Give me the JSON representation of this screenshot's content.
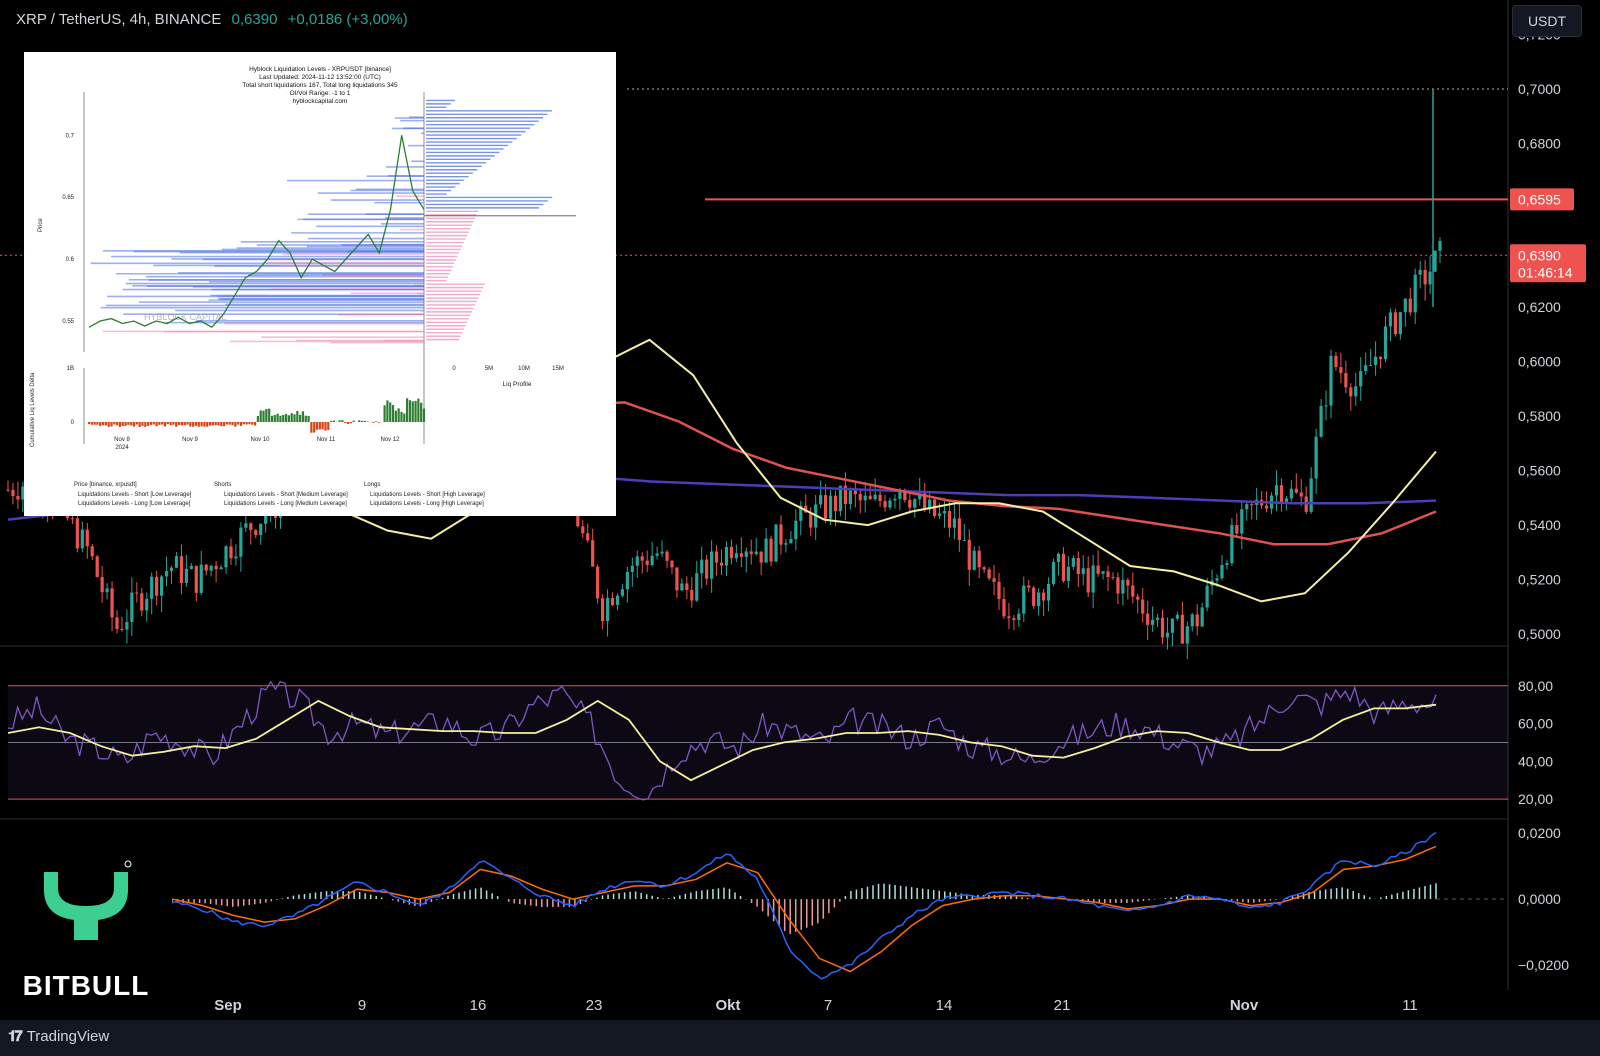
{
  "header": {
    "symbol": "XRP / TetherUS, 4h, BINANCE",
    "last": "0,6390",
    "change": "+0,0186 (+3,00%)"
  },
  "currency_button": "USDT",
  "price_tags": {
    "level": "0,6595",
    "last": "0,6390",
    "countdown": "01:46:14"
  },
  "brand": {
    "name": "BITBULL",
    "icon": "bitbull-logo-icon"
  },
  "footer": {
    "label": "TradingView",
    "icon": "tradingview-logo-icon"
  },
  "colors": {
    "bg": "#000000",
    "up": "#26a69a",
    "down": "#ef5350",
    "ma_fast": "#f5f0a0",
    "ma_mid": "#e05252",
    "ma_slow": "#4b3fb8",
    "rsi": "#7e57c2",
    "rsi_ma": "#f5f0a0",
    "macd": "#2962ff",
    "signal": "#ff6d00",
    "brand": "#3ccf91"
  },
  "chart_data": [
    {
      "type": "candlestick",
      "title": "XRP / TetherUS, 4h, BINANCE",
      "x_labels": [
        "Sep",
        "9",
        "16",
        "23",
        "Okt",
        "7",
        "14",
        "21",
        "Nov",
        "11"
      ],
      "y_ticks": [
        "0,7200",
        "0,7000",
        "0,6800",
        "0,6600",
        "0,6400",
        "0,6200",
        "0,6000",
        "0,5800",
        "0,5600",
        "0,5400",
        "0,5200",
        "0,5000"
      ],
      "ylim": [
        0.496,
        0.729
      ],
      "horizontal_line": 0.6595,
      "last_price": 0.639,
      "close_path": [
        0.553,
        0.557,
        0.545,
        0.53,
        0.502,
        0.515,
        0.525,
        0.52,
        0.53,
        0.54,
        0.548,
        0.58,
        0.575,
        0.585,
        0.59,
        0.58,
        0.586,
        0.62,
        0.655,
        0.6,
        0.625,
        0.545,
        0.51,
        0.525,
        0.53,
        0.515,
        0.525,
        0.535,
        0.53,
        0.54,
        0.545,
        0.55,
        0.547,
        0.555,
        0.545,
        0.54,
        0.52,
        0.51,
        0.515,
        0.525,
        0.52,
        0.52,
        0.51,
        0.5,
        0.505,
        0.53,
        0.545,
        0.555,
        0.548,
        0.6,
        0.59,
        0.61,
        0.625,
        0.639
      ],
      "series": [
        {
          "name": "MA fast",
          "values": [
            0.55,
            0.545,
            0.538,
            0.535,
            0.545,
            0.57,
            0.59,
            0.6,
            0.608,
            0.595,
            0.57,
            0.55,
            0.542,
            0.54,
            0.545,
            0.548,
            0.548,
            0.545,
            0.535,
            0.525,
            0.523,
            0.518,
            0.512,
            0.515,
            0.53,
            0.548,
            0.567
          ]
        },
        {
          "name": "MA mid",
          "values": [
            0.565,
            0.567,
            0.57,
            0.575,
            0.58,
            0.584,
            0.585,
            0.578,
            0.568,
            0.561,
            0.557,
            0.553,
            0.549,
            0.547,
            0.546,
            0.543,
            0.54,
            0.537,
            0.533,
            0.533,
            0.537,
            0.545
          ]
        },
        {
          "name": "MA slow",
          "values": [
            0.542,
            0.545,
            0.548,
            0.551,
            0.554,
            0.556,
            0.558,
            0.56,
            0.558,
            0.556,
            0.555,
            0.554,
            0.553,
            0.552,
            0.551,
            0.551,
            0.55,
            0.549,
            0.548,
            0.548,
            0.549
          ]
        }
      ]
    },
    {
      "type": "line",
      "title": "RSI",
      "y_ticks": [
        "80,00",
        "60,00",
        "40,00",
        "20,00"
      ],
      "ylim": [
        10,
        100
      ],
      "bands": [
        80,
        50,
        20
      ],
      "series": [
        {
          "name": "RSI",
          "values": [
            60,
            68,
            52,
            47,
            40,
            55,
            50,
            42,
            60,
            78,
            72,
            55,
            60,
            54,
            58,
            62,
            52,
            56,
            70,
            76,
            60,
            30,
            24,
            45,
            52,
            47,
            60,
            55,
            50,
            62,
            58,
            52,
            60,
            48,
            45,
            40,
            50,
            55,
            60,
            58,
            50,
            45,
            50,
            62,
            75,
            70,
            78,
            65,
            72,
            70
          ]
        },
        {
          "name": "RSI MA",
          "values": [
            55,
            58,
            55,
            48,
            43,
            45,
            48,
            47,
            52,
            62,
            72,
            64,
            58,
            57,
            56,
            56,
            55,
            55,
            62,
            72,
            62,
            40,
            30,
            38,
            46,
            50,
            52,
            55,
            55,
            56,
            54,
            50,
            48,
            43,
            42,
            47,
            53,
            56,
            55,
            50,
            46,
            46,
            52,
            62,
            68,
            68,
            70
          ]
        }
      ]
    },
    {
      "type": "line",
      "title": "MACD",
      "y_ticks": [
        "0,0200",
        "0,0000",
        "−0,0200"
      ],
      "ylim": [
        -0.027,
        0.024
      ],
      "series": [
        {
          "name": "MACD",
          "values": [
            -0.001,
            -0.003,
            -0.007,
            -0.008,
            -0.005,
            0.0,
            0.005,
            0.002,
            -0.002,
            0.003,
            0.012,
            0.006,
            0.001,
            -0.002,
            0.003,
            0.006,
            0.004,
            0.008,
            0.014,
            0.006,
            -0.015,
            -0.024,
            -0.02,
            -0.012,
            -0.005,
            0.0,
            0.001,
            0.002,
            0.001,
            0.0,
            -0.002,
            -0.004,
            -0.002,
            0.001,
            0.0,
            -0.003,
            -0.001,
            0.004,
            0.012,
            0.01,
            0.014,
            0.02
          ]
        },
        {
          "name": "Signal",
          "values": [
            0.0,
            -0.002,
            -0.005,
            -0.007,
            -0.006,
            -0.002,
            0.003,
            0.002,
            0.0,
            0.002,
            0.009,
            0.007,
            0.003,
            0.0,
            0.002,
            0.004,
            0.004,
            0.006,
            0.011,
            0.008,
            -0.006,
            -0.018,
            -0.022,
            -0.016,
            -0.008,
            -0.002,
            0.0,
            0.001,
            0.001,
            0.0,
            -0.001,
            -0.003,
            -0.002,
            0.0,
            0.0,
            -0.002,
            -0.001,
            0.002,
            0.009,
            0.01,
            0.012,
            0.016
          ]
        }
      ]
    },
    {
      "type": "line",
      "title": "Hyblock Liquidation Levels - XRPUSDT [binance]",
      "subtitle_lines": [
        "Last Updated: 2024-11-12 13:52:00 (UTC)",
        "Total short liquidations 167, Total long liquidations 345",
        "OI/Vol Range: -1 to 1",
        "hyblockcapital.com"
      ],
      "ylabel": "Price",
      "y_ticks": [
        "0.7",
        "0.65",
        "0.6",
        "0.55"
      ],
      "ylim": [
        0.525,
        0.735
      ],
      "x_labels": [
        "Nov 8\n2024",
        "Nov 9",
        "Nov 10",
        "Nov 11",
        "Nov 12"
      ],
      "watermark": "HYBLOCK CAPITAL",
      "price": [
        0.545,
        0.55,
        0.552,
        0.548,
        0.55,
        0.546,
        0.55,
        0.548,
        0.553,
        0.548,
        0.55,
        0.545,
        0.555,
        0.57,
        0.585,
        0.59,
        0.6,
        0.615,
        0.605,
        0.585,
        0.6,
        0.595,
        0.59,
        0.6,
        0.61,
        0.62,
        0.605,
        0.64,
        0.7,
        0.655,
        0.64
      ],
      "profile_label": "Liq Profile",
      "profile_ticks": [
        "0",
        "5M",
        "10M",
        "15M"
      ],
      "delta_label": "Cumulative Liq Levels Delta",
      "delta_ticks": [
        "1B",
        "0"
      ],
      "legend": [
        "Price [binance, xrpusdt]",
        "Shorts",
        "Longs",
        "Liquidations Levels - Short [Low Leverage]",
        "Liquidations Levels - Short [Medium Leverage]",
        "Liquidations Levels - Short [High Leverage]",
        "Liquidations Levels - Long [Low Leverage]",
        "Liquidations Levels - Long [Medium Leverage]",
        "Liquidations Levels - Long [High Leverage]"
      ]
    }
  ]
}
